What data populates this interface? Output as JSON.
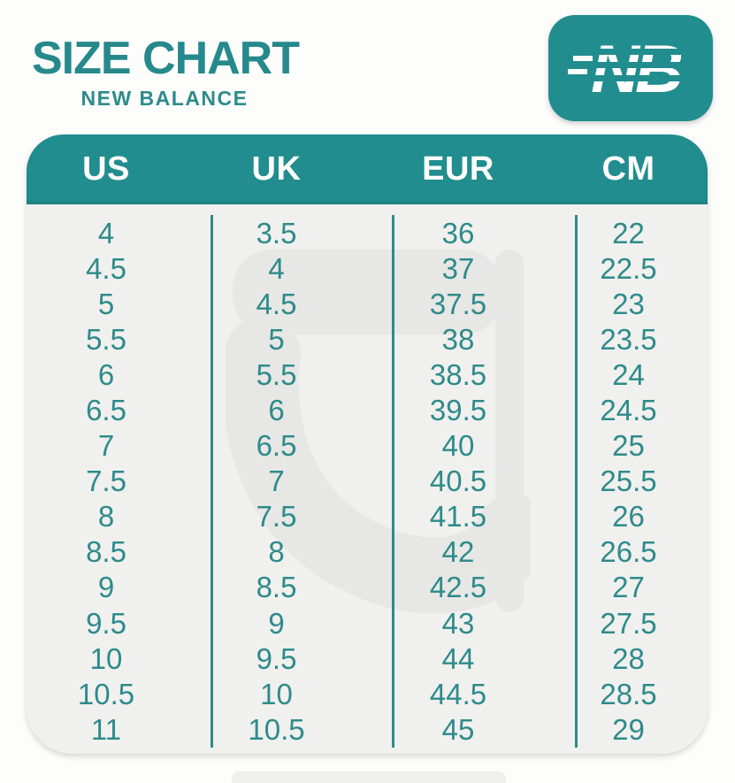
{
  "header": {
    "title": "SIZE CHART",
    "subtitle": "NEW BALANCE",
    "brand": "New Balance",
    "logo_icon": "new-balance-nb-logo"
  },
  "colors": {
    "teal_header": "#218d8e",
    "teal_title": "#26898b",
    "teal_numbers": "#2e8b8b",
    "card_background": "#f0f0ee",
    "page_background": "#fdfdfc",
    "watermark_gray": "#e7e7e5",
    "header_text": "#ffffff"
  },
  "chart_data": {
    "type": "table",
    "title": "SIZE CHART",
    "subtitle": "NEW BALANCE",
    "columns": [
      "US",
      "UK",
      "EUR",
      "CM"
    ],
    "rows": [
      [
        "4",
        "3.5",
        "36",
        "22"
      ],
      [
        "4.5",
        "4",
        "37",
        "22.5"
      ],
      [
        "5",
        "4.5",
        "37.5",
        "23"
      ],
      [
        "5.5",
        "5",
        "38",
        "23.5"
      ],
      [
        "6",
        "5.5",
        "38.5",
        "24"
      ],
      [
        "6.5",
        "6",
        "39.5",
        "24.5"
      ],
      [
        "7",
        "6.5",
        "40",
        "25"
      ],
      [
        "7.5",
        "7",
        "40.5",
        "25.5"
      ],
      [
        "8",
        "7.5",
        "41.5",
        "26"
      ],
      [
        "8.5",
        "8",
        "42",
        "26.5"
      ],
      [
        "9",
        "8.5",
        "42.5",
        "27"
      ],
      [
        "9.5",
        "9",
        "43",
        "27.5"
      ],
      [
        "10",
        "9.5",
        "44",
        "28"
      ],
      [
        "10.5",
        "10",
        "44.5",
        "28.5"
      ],
      [
        "11",
        "10.5",
        "45",
        "29"
      ]
    ]
  }
}
